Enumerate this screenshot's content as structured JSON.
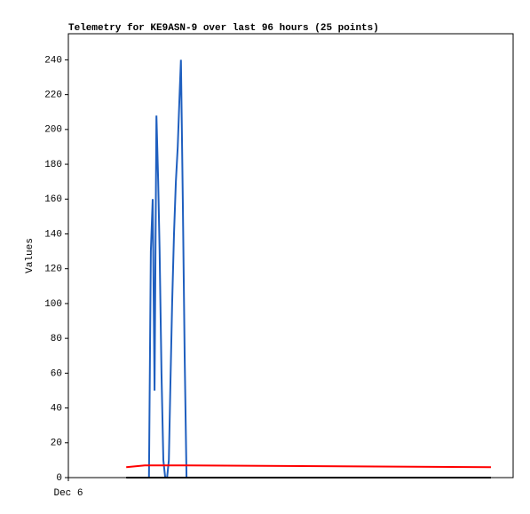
{
  "chart_data": {
    "type": "line",
    "title": "Telemetry for KE9ASN-9 over last 96 hours (25 points)",
    "y_label": "Values",
    "xlim": [
      0,
      96
    ],
    "xticks": [
      {
        "value": 0,
        "label": "Dec 6"
      }
    ],
    "ylim": [
      0,
      255
    ],
    "yticks": [
      0,
      20,
      40,
      60,
      80,
      100,
      120,
      140,
      160,
      180,
      200,
      220,
      240
    ],
    "grid": false,
    "series": [
      {
        "color": "#1f5fbf",
        "x": [
          17.4,
          17.8,
          18.2,
          18.6,
          19.0,
          19.4,
          19.7,
          20.1,
          20.5,
          20.9,
          21.3,
          21.7,
          22.0,
          22.4,
          22.8,
          23.2,
          23.6,
          24.0,
          24.3,
          24.7,
          25.1,
          25.5
        ],
        "values": [
          0,
          130,
          160,
          50,
          208,
          170,
          130,
          60,
          10,
          0,
          0,
          10,
          50,
          100,
          140,
          170,
          190,
          220,
          240,
          160,
          70,
          0
        ]
      },
      {
        "color": "#ff0000",
        "x": [
          12.5,
          16.5,
          25.5,
          91.2
        ],
        "values": [
          6,
          7,
          7,
          6
        ]
      },
      {
        "color": "#000000",
        "x": [
          12.5,
          91.2
        ],
        "values": [
          0,
          0
        ]
      }
    ]
  }
}
